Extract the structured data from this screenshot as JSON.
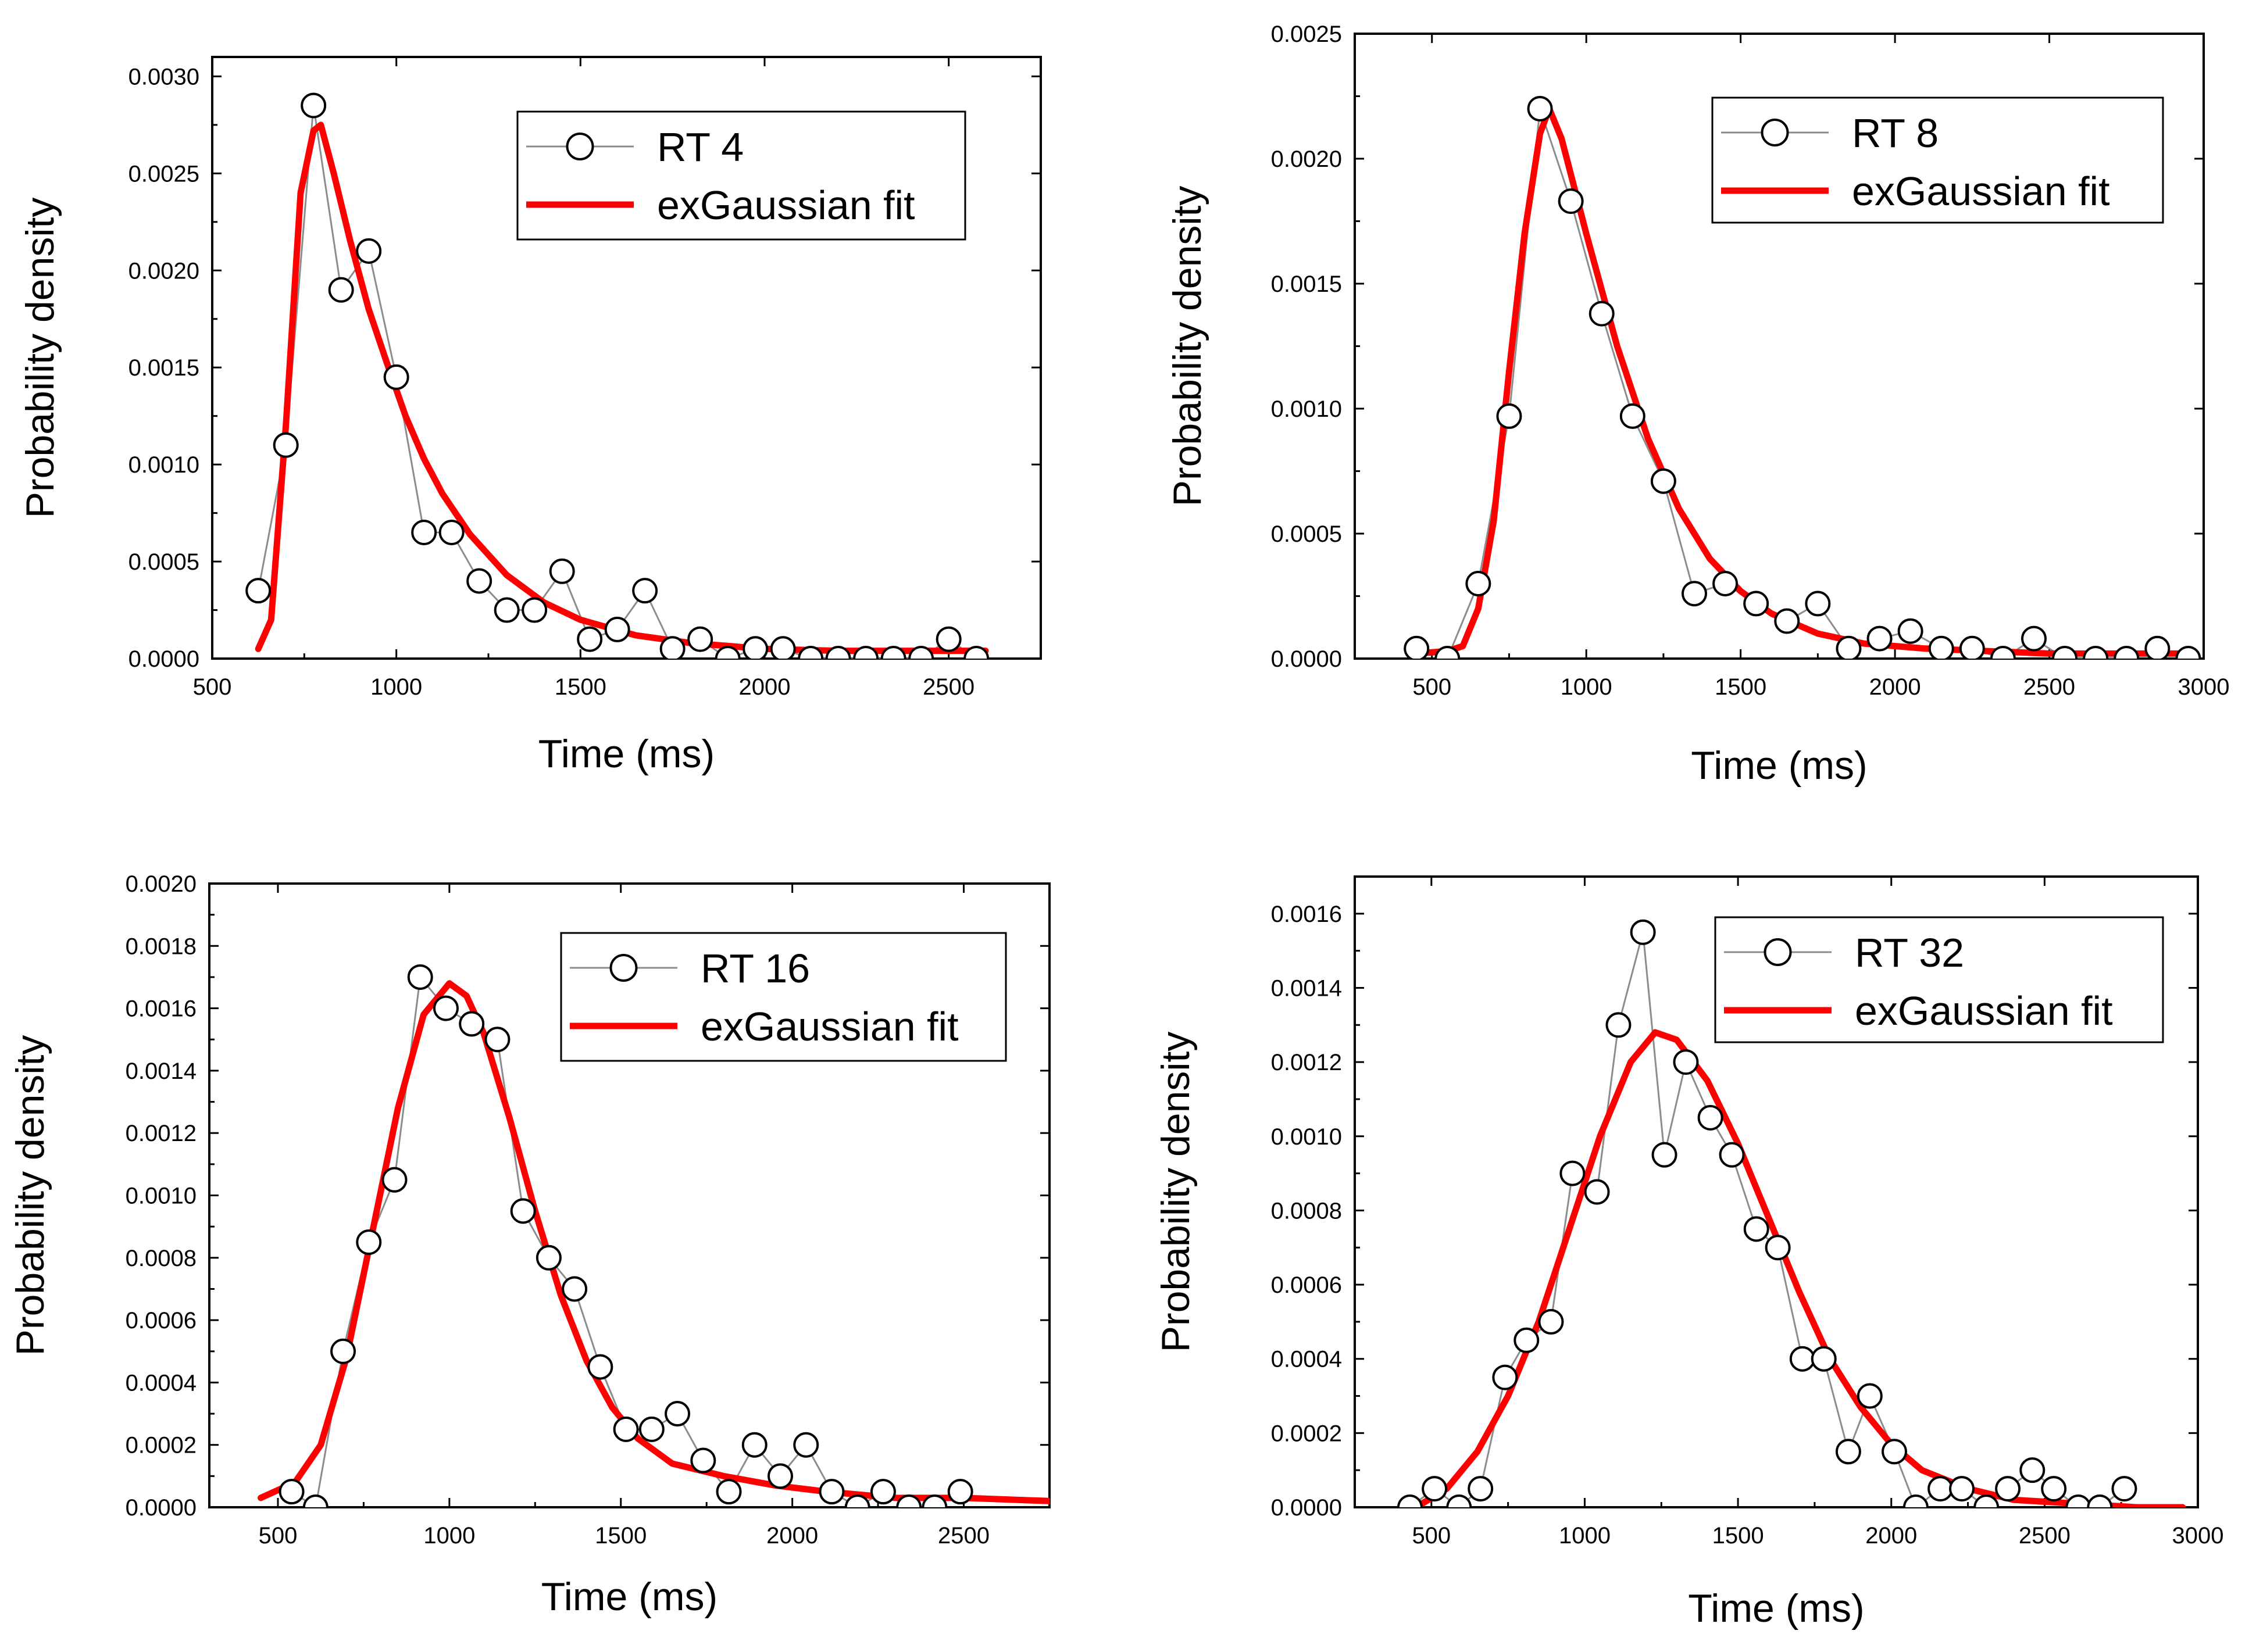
{
  "chart_data": [
    {
      "type": "line",
      "id": "rt4",
      "xlabel": "Time (ms)",
      "ylabel": "Probability density",
      "xlim": [
        500,
        2750
      ],
      "ylim": [
        0,
        0.0031
      ],
      "xticks": [
        500,
        1000,
        1500,
        2000,
        2500
      ],
      "xtick_labels": [
        "500",
        "1000",
        "1500",
        "2000",
        "2500"
      ],
      "yticks": [
        0,
        0.0005,
        0.001,
        0.0015,
        0.002,
        0.0025,
        0.003
      ],
      "ytick_labels": [
        "0.0000",
        "0.0005",
        "0.0010",
        "0.0015",
        "0.0020",
        "0.0025",
        "0.0030"
      ],
      "legend_position": "top-right",
      "series": [
        {
          "name": "RT 4",
          "style": "grey line with open circles",
          "x": [
            625,
            700,
            775,
            850,
            925,
            1000,
            1075,
            1150,
            1225,
            1300,
            1375,
            1450,
            1525,
            1600,
            1675,
            1750,
            1825,
            1900,
            1975,
            2050,
            2125,
            2200,
            2275,
            2350,
            2425,
            2500,
            2575
          ],
          "y": [
            0.00035,
            0.0011,
            0.00285,
            0.0019,
            0.0021,
            0.00145,
            0.00065,
            0.00065,
            0.0004,
            0.00025,
            0.00025,
            0.00045,
            0.0001,
            0.00015,
            0.00035,
            5e-05,
            0.0001,
            0.0,
            5e-05,
            5e-05,
            0.0,
            0.0,
            0.0,
            0.0,
            0.0,
            0.0001,
            0.0
          ]
        },
        {
          "name": "exGaussian fit",
          "style": "red line",
          "x": [
            625,
            660,
            700,
            740,
            775,
            795,
            830,
            875,
            925,
            975,
            1025,
            1075,
            1125,
            1200,
            1300,
            1400,
            1500,
            1650,
            1800,
            2000,
            2200,
            2400,
            2600
          ],
          "y": [
            5e-05,
            0.0002,
            0.0012,
            0.0024,
            0.00272,
            0.00275,
            0.0025,
            0.00215,
            0.0018,
            0.00152,
            0.00125,
            0.00103,
            0.00085,
            0.00064,
            0.00043,
            0.00029,
            0.0002,
            0.00012,
            8e-05,
            5e-05,
            4e-05,
            4e-05,
            4e-05
          ]
        }
      ]
    },
    {
      "type": "line",
      "id": "rt8",
      "xlabel": "Time (ms)",
      "ylabel": "Probability density",
      "xlim": [
        250,
        3000
      ],
      "ylim": [
        0,
        0.0025
      ],
      "xticks": [
        500,
        1000,
        1500,
        2000,
        2500,
        3000
      ],
      "xtick_labels": [
        "500",
        "1000",
        "1500",
        "2000",
        "2500",
        "3000"
      ],
      "yticks": [
        0,
        0.0005,
        0.001,
        0.0015,
        0.002,
        0.0025
      ],
      "ytick_labels": [
        "0.0000",
        "0.0005",
        "0.0010",
        "0.0015",
        "0.0020",
        "0.0025"
      ],
      "legend_position": "top-right",
      "series": [
        {
          "name": "RT 8",
          "style": "grey line with open circles",
          "x": [
            450,
            550,
            650,
            750,
            850,
            950,
            1050,
            1150,
            1250,
            1350,
            1450,
            1550,
            1650,
            1750,
            1850,
            1950,
            2050,
            2150,
            2250,
            2350,
            2450,
            2550,
            2650,
            2750,
            2850,
            2950
          ],
          "y": [
            4e-05,
            0.0,
            0.0003,
            0.00097,
            0.0022,
            0.00183,
            0.00138,
            0.00097,
            0.00071,
            0.00026,
            0.0003,
            0.00022,
            0.00015,
            0.00022,
            4e-05,
            8e-05,
            0.00011,
            4e-05,
            4e-05,
            0.0,
            8e-05,
            0.0,
            0.0,
            0.0,
            4e-05,
            0.0
          ]
        },
        {
          "name": "exGaussian fit",
          "style": "red line",
          "x": [
            450,
            550,
            600,
            650,
            700,
            750,
            800,
            850,
            880,
            920,
            1000,
            1100,
            1200,
            1300,
            1400,
            1500,
            1600,
            1750,
            1900,
            2100,
            2300,
            2500,
            2700,
            2950
          ],
          "y": [
            2e-05,
            3e-05,
            5e-05,
            0.0002,
            0.00055,
            0.00115,
            0.0017,
            0.0021,
            0.0022,
            0.00208,
            0.0017,
            0.00125,
            0.00088,
            0.0006,
            0.0004,
            0.00027,
            0.00018,
            0.0001,
            6e-05,
            4e-05,
            3e-05,
            2e-05,
            2e-05,
            2e-05
          ]
        }
      ]
    },
    {
      "type": "line",
      "id": "rt16",
      "xlabel": "Time (ms)",
      "ylabel": "Probability density",
      "xlim": [
        300,
        2750
      ],
      "ylim": [
        0,
        0.002
      ],
      "xticks": [
        500,
        1000,
        1500,
        2000,
        2500
      ],
      "xtick_labels": [
        "500",
        "1000",
        "1500",
        "2000",
        "2500"
      ],
      "yticks": [
        0,
        0.0002,
        0.0004,
        0.0006,
        0.0008,
        0.001,
        0.0012,
        0.0014,
        0.0016,
        0.0018,
        0.002
      ],
      "ytick_labels": [
        "0.0000",
        "0.0002",
        "0.0004",
        "0.0006",
        "0.0008",
        "0.0010",
        "0.0012",
        "0.0014",
        "0.0016",
        "0.0018",
        "0.0020"
      ],
      "legend_position": "top-right",
      "series": [
        {
          "name": "RT 16",
          "style": "grey line with open circles",
          "x": [
            540,
            610,
            690,
            765,
            840,
            915,
            990,
            1065,
            1140,
            1215,
            1290,
            1365,
            1440,
            1515,
            1590,
            1665,
            1740,
            1815,
            1890,
            1965,
            2040,
            2115,
            2190,
            2265,
            2340,
            2415,
            2490
          ],
          "y": [
            5e-05,
            0.0,
            0.0005,
            0.00085,
            0.00105,
            0.0017,
            0.0016,
            0.00155,
            0.0015,
            0.00095,
            0.0008,
            0.0007,
            0.00045,
            0.00025,
            0.00025,
            0.0003,
            0.00015,
            5e-05,
            0.0002,
            0.0001,
            0.0002,
            5e-05,
            0.0,
            5e-05,
            0.0,
            0.0,
            5e-05
          ]
        },
        {
          "name": "exGaussian fit",
          "style": "red line",
          "x": [
            450,
            550,
            625,
            700,
            775,
            850,
            925,
            1000,
            1050,
            1100,
            1175,
            1250,
            1325,
            1400,
            1475,
            1550,
            1650,
            1800,
            1950,
            2100,
            2300,
            2500,
            2750
          ],
          "y": [
            3e-05,
            8e-05,
            0.0002,
            0.00048,
            0.00088,
            0.00128,
            0.00158,
            0.00168,
            0.00164,
            0.00152,
            0.00125,
            0.00095,
            0.00068,
            0.00047,
            0.00032,
            0.00022,
            0.00014,
            0.0001,
            7e-05,
            5e-05,
            3e-05,
            3e-05,
            2e-05
          ]
        }
      ]
    },
    {
      "type": "line",
      "id": "rt32",
      "xlabel": "Time (ms)",
      "ylabel": "Probability density",
      "xlim": [
        250,
        3000
      ],
      "ylim": [
        0,
        0.0017
      ],
      "xticks": [
        500,
        1000,
        1500,
        2000,
        2500,
        3000
      ],
      "xtick_labels": [
        "500",
        "1000",
        "1500",
        "2000",
        "2500",
        "3000"
      ],
      "yticks": [
        0,
        0.0002,
        0.0004,
        0.0006,
        0.0008,
        0.001,
        0.0012,
        0.0014,
        0.0016
      ],
      "ytick_labels": [
        "0.0000",
        "0.0002",
        "0.0004",
        "0.0006",
        "0.0008",
        "0.0010",
        "0.0012",
        "0.0014",
        "0.0016"
      ],
      "legend_position": "top-right",
      "series": [
        {
          "name": "RT 32",
          "style": "grey line with open circles",
          "x": [
            430,
            510,
            590,
            660,
            740,
            810,
            890,
            960,
            1040,
            1110,
            1190,
            1260,
            1330,
            1410,
            1480,
            1560,
            1630,
            1710,
            1780,
            1860,
            1930,
            2010,
            2080,
            2160,
            2230,
            2310,
            2380,
            2460,
            2530,
            2610,
            2680,
            2760
          ],
          "y": [
            0.0,
            5e-05,
            0.0,
            5e-05,
            0.00035,
            0.00045,
            0.0005,
            0.0009,
            0.00085,
            0.0013,
            0.00155,
            0.00095,
            0.0012,
            0.00105,
            0.00095,
            0.00075,
            0.0007,
            0.0004,
            0.0004,
            0.00015,
            0.0003,
            0.00015,
            0.0,
            5e-05,
            5e-05,
            0.0,
            5e-05,
            0.0001,
            5e-05,
            0.0,
            0.0,
            5e-05
          ]
        },
        {
          "name": "exGaussian fit",
          "style": "red line",
          "x": [
            450,
            550,
            650,
            750,
            850,
            950,
            1050,
            1150,
            1230,
            1300,
            1400,
            1500,
            1600,
            1700,
            1800,
            1900,
            2000,
            2100,
            2250,
            2400,
            2600,
            2800,
            2950
          ],
          "y": [
            0.0,
            5e-05,
            0.00015,
            0.0003,
            0.0005,
            0.00075,
            0.001,
            0.0012,
            0.00128,
            0.00126,
            0.00115,
            0.00098,
            0.00078,
            0.00058,
            0.0004,
            0.00027,
            0.00017,
            0.0001,
            5e-05,
            2e-05,
            1e-05,
            0.0,
            0.0
          ]
        }
      ]
    }
  ]
}
